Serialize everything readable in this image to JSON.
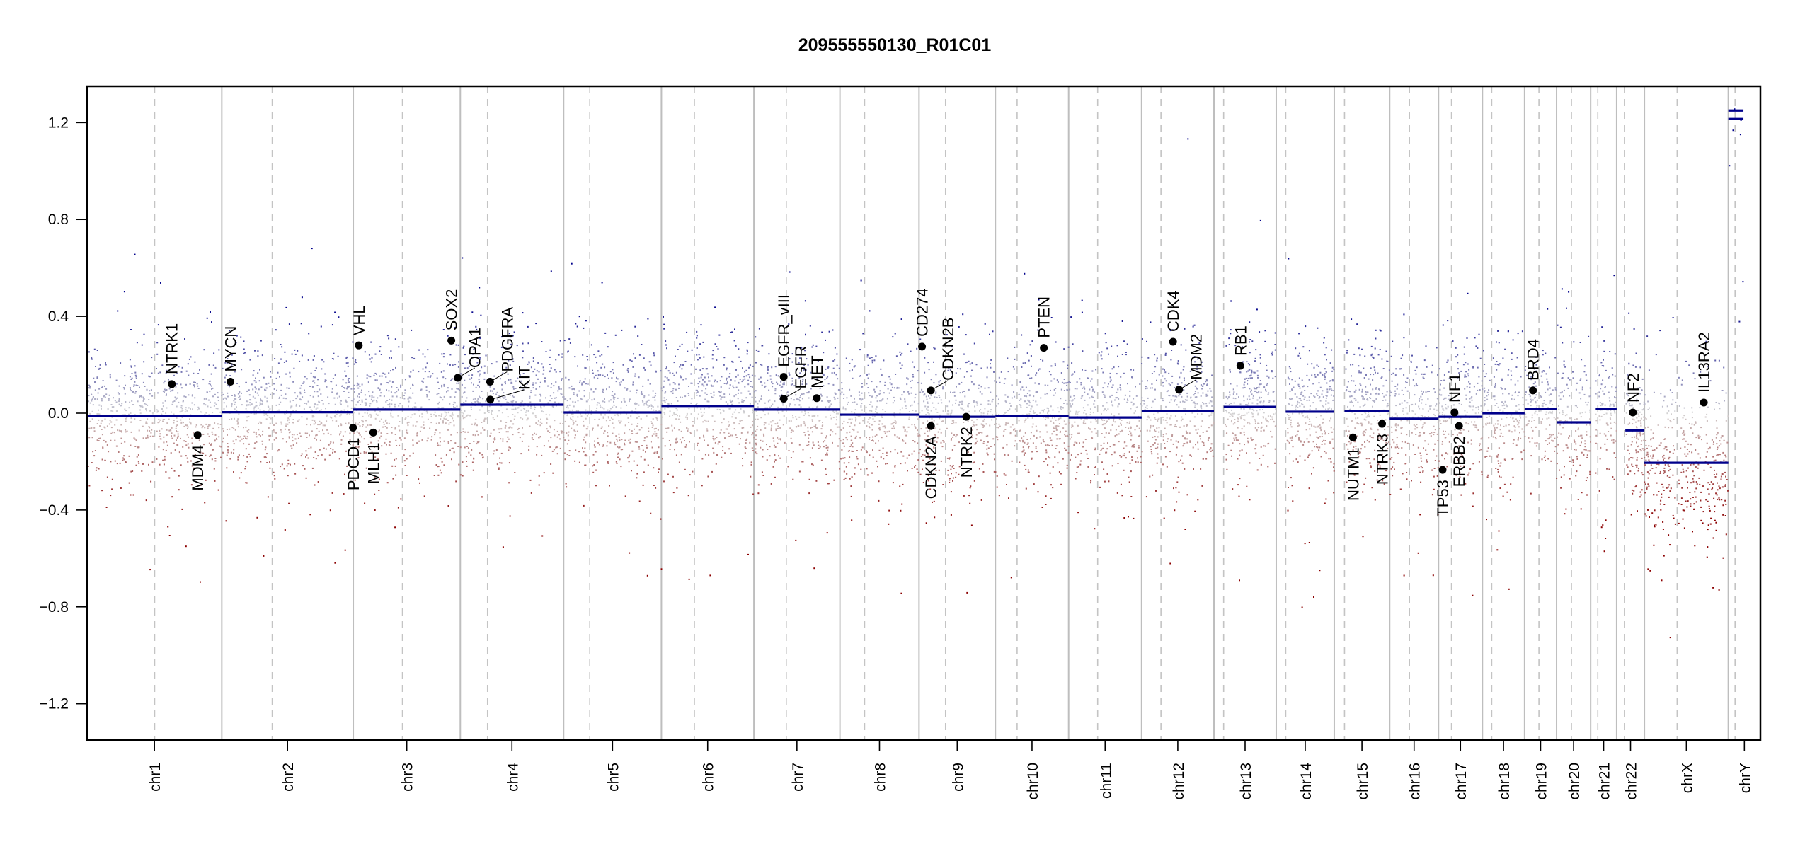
{
  "chart_data": {
    "type": "scatter",
    "title": "209555550130_R01C01",
    "xlabel": "",
    "ylabel": "",
    "ylim": [
      -1.35,
      1.35
    ],
    "yticks": [
      1.2,
      0.8,
      0.4,
      0.0,
      -0.4,
      -0.8,
      -1.2
    ],
    "ytick_labels": [
      "1.2",
      "0.8",
      "0.4",
      "0.0",
      "−0.4",
      "−0.8",
      "−1.2"
    ],
    "grid": false,
    "colors": {
      "gain": "#00008b",
      "neutral": "#d3d3d3",
      "loss": "#8b0000",
      "segment": "#00008b",
      "chrom_divider": "#bebebe",
      "gene_point": "#000000"
    },
    "chromosomes": [
      {
        "name": "chr1",
        "length_mb": 249.25,
        "centromere_mb": 125.0,
        "segments": [
          {
            "start_mb": 0,
            "end_mb": 249.25,
            "value": -0.012
          }
        ]
      },
      {
        "name": "chr2",
        "length_mb": 243.2,
        "centromere_mb": 93.3,
        "segments": [
          {
            "start_mb": 0,
            "end_mb": 243.2,
            "value": 0.004
          }
        ]
      },
      {
        "name": "chr3",
        "length_mb": 198.02,
        "centromere_mb": 91.0,
        "segments": [
          {
            "start_mb": 0,
            "end_mb": 198.02,
            "value": 0.015
          }
        ]
      },
      {
        "name": "chr4",
        "length_mb": 191.15,
        "centromere_mb": 50.4,
        "segments": [
          {
            "start_mb": 0,
            "end_mb": 191.15,
            "value": 0.035
          }
        ]
      },
      {
        "name": "chr5",
        "length_mb": 180.92,
        "centromere_mb": 48.4,
        "segments": [
          {
            "start_mb": 0,
            "end_mb": 180.92,
            "value": 0.003
          }
        ]
      },
      {
        "name": "chr6",
        "length_mb": 171.12,
        "centromere_mb": 61.0,
        "segments": [
          {
            "start_mb": 0,
            "end_mb": 171.12,
            "value": 0.03
          }
        ]
      },
      {
        "name": "chr7",
        "length_mb": 159.14,
        "centromere_mb": 59.9,
        "segments": [
          {
            "start_mb": 0,
            "end_mb": 159.14,
            "value": 0.015
          }
        ]
      },
      {
        "name": "chr8",
        "length_mb": 146.36,
        "centromere_mb": 45.6,
        "segments": [
          {
            "start_mb": 0,
            "end_mb": 146.36,
            "value": -0.006
          }
        ]
      },
      {
        "name": "chr9",
        "length_mb": 141.21,
        "centromere_mb": 49.0,
        "segments": [
          {
            "start_mb": 0,
            "end_mb": 141.21,
            "value": -0.015
          }
        ]
      },
      {
        "name": "chr10",
        "length_mb": 135.53,
        "centromere_mb": 40.2,
        "segments": [
          {
            "start_mb": 0,
            "end_mb": 135.53,
            "value": -0.012
          }
        ]
      },
      {
        "name": "chr11",
        "length_mb": 135.01,
        "centromere_mb": 53.7,
        "segments": [
          {
            "start_mb": 0,
            "end_mb": 135.01,
            "value": -0.018
          }
        ]
      },
      {
        "name": "chr12",
        "length_mb": 133.85,
        "centromere_mb": 35.8,
        "segments": [
          {
            "start_mb": 0,
            "end_mb": 133.85,
            "value": 0.009
          }
        ]
      },
      {
        "name": "chr13",
        "length_mb": 115.17,
        "centromere_mb": 17.9,
        "segments": [
          {
            "start_mb": 17.9,
            "end_mb": 115.17,
            "value": 0.026
          }
        ]
      },
      {
        "name": "chr14",
        "length_mb": 107.35,
        "centromere_mb": 17.6,
        "segments": [
          {
            "start_mb": 17.6,
            "end_mb": 107.35,
            "value": 0.006
          }
        ]
      },
      {
        "name": "chr15",
        "length_mb": 102.53,
        "centromere_mb": 19.0,
        "segments": [
          {
            "start_mb": 19.0,
            "end_mb": 102.53,
            "value": 0.009
          }
        ]
      },
      {
        "name": "chr16",
        "length_mb": 90.35,
        "centromere_mb": 36.6,
        "segments": [
          {
            "start_mb": 0,
            "end_mb": 90.35,
            "value": -0.023
          }
        ]
      },
      {
        "name": "chr17",
        "length_mb": 81.2,
        "centromere_mb": 24.0,
        "segments": [
          {
            "start_mb": 0,
            "end_mb": 81.2,
            "value": -0.015
          }
        ]
      },
      {
        "name": "chr18",
        "length_mb": 78.08,
        "centromere_mb": 17.2,
        "segments": [
          {
            "start_mb": 0,
            "end_mb": 78.08,
            "value": 0.0
          }
        ]
      },
      {
        "name": "chr19",
        "length_mb": 59.13,
        "centromere_mb": 26.5,
        "segments": [
          {
            "start_mb": 0,
            "end_mb": 59.13,
            "value": 0.018
          }
        ]
      },
      {
        "name": "chr20",
        "length_mb": 63.03,
        "centromere_mb": 27.5,
        "segments": [
          {
            "start_mb": 0,
            "end_mb": 63.03,
            "value": -0.038
          }
        ]
      },
      {
        "name": "chr21",
        "length_mb": 48.13,
        "centromere_mb": 13.2,
        "segments": [
          {
            "start_mb": 9.4,
            "end_mb": 48.13,
            "value": 0.018
          }
        ]
      },
      {
        "name": "chr22",
        "length_mb": 51.3,
        "centromere_mb": 14.7,
        "segments": [
          {
            "start_mb": 16.0,
            "end_mb": 51.3,
            "value": -0.071
          }
        ]
      },
      {
        "name": "chrX",
        "length_mb": 155.27,
        "centromere_mb": 60.6,
        "segments": [
          {
            "start_mb": 0,
            "end_mb": 155.27,
            "value": -0.205
          }
        ]
      },
      {
        "name": "chrY",
        "length_mb": 59.37,
        "centromere_mb": 12.5,
        "segments": [
          {
            "start_mb": 0,
            "end_mb": 28.0,
            "value": 1.25
          },
          {
            "start_mb": 0,
            "end_mb": 28.0,
            "value": 1.215
          }
        ]
      }
    ],
    "genes": [
      {
        "label": "NTRK1",
        "chr": "chr1",
        "pos_mb": 156.8,
        "value": 0.12
      },
      {
        "label": "MDM4",
        "chr": "chr1",
        "pos_mb": 204.5,
        "value": -0.09
      },
      {
        "label": "MYCN",
        "chr": "chr2",
        "pos_mb": 16.0,
        "value": 0.13
      },
      {
        "label": "PDCD1",
        "chr": "chr2",
        "pos_mb": 242.8,
        "value": -0.06
      },
      {
        "label": "VHL",
        "chr": "chr3",
        "pos_mb": 10.2,
        "value": 0.28
      },
      {
        "label": "MLH1",
        "chr": "chr3",
        "pos_mb": 37.0,
        "value": -0.08
      },
      {
        "label": "SOX2",
        "chr": "chr3",
        "pos_mb": 181.4,
        "value": 0.3
      },
      {
        "label": "OPA1",
        "chr": "chr3",
        "pos_mb": 193.3,
        "value": 0.146
      },
      {
        "label": "PDGFRA",
        "chr": "chr4",
        "pos_mb": 55.1,
        "value": 0.13
      },
      {
        "label": "KIT",
        "chr": "chr4",
        "pos_mb": 55.5,
        "value": 0.056
      },
      {
        "label": "EGFR_vIII",
        "chr": "chr7",
        "pos_mb": 55.1,
        "value": 0.15
      },
      {
        "label": "EGFR",
        "chr": "chr7",
        "pos_mb": 55.2,
        "value": 0.06
      },
      {
        "label": "MET",
        "chr": "chr7",
        "pos_mb": 116.3,
        "value": 0.062
      },
      {
        "label": "CD274",
        "chr": "chr9",
        "pos_mb": 5.5,
        "value": 0.275
      },
      {
        "label": "CDKN2B",
        "chr": "chr9",
        "pos_mb": 22.0,
        "value": 0.094
      },
      {
        "label": "CDKN2A",
        "chr": "chr9",
        "pos_mb": 21.97,
        "value": -0.053
      },
      {
        "label": "NTRK2",
        "chr": "chr9",
        "pos_mb": 87.3,
        "value": -0.015
      },
      {
        "label": "PTEN",
        "chr": "chr10",
        "pos_mb": 89.6,
        "value": 0.27
      },
      {
        "label": "CDK4",
        "chr": "chr12",
        "pos_mb": 58.1,
        "value": 0.295
      },
      {
        "label": "MDM2",
        "chr": "chr12",
        "pos_mb": 69.2,
        "value": 0.097
      },
      {
        "label": "RB1",
        "chr": "chr13",
        "pos_mb": 48.9,
        "value": 0.196
      },
      {
        "label": "NUTM1",
        "chr": "chr15",
        "pos_mb": 34.6,
        "value": -0.1
      },
      {
        "label": "NTRK3",
        "chr": "chr15",
        "pos_mb": 88.5,
        "value": -0.044
      },
      {
        "label": "TP53",
        "chr": "chr17",
        "pos_mb": 7.6,
        "value": -0.234
      },
      {
        "label": "NF1",
        "chr": "chr17",
        "pos_mb": 29.5,
        "value": 0.003
      },
      {
        "label": "ERBB2",
        "chr": "chr17",
        "pos_mb": 37.9,
        "value": -0.053
      },
      {
        "label": "BRD4",
        "chr": "chr19",
        "pos_mb": 15.4,
        "value": 0.094
      },
      {
        "label": "NF2",
        "chr": "chr22",
        "pos_mb": 30.0,
        "value": 0.003
      },
      {
        "label": "IL13RA2",
        "chr": "chrX",
        "pos_mb": 110.0,
        "value": 0.044
      }
    ]
  }
}
